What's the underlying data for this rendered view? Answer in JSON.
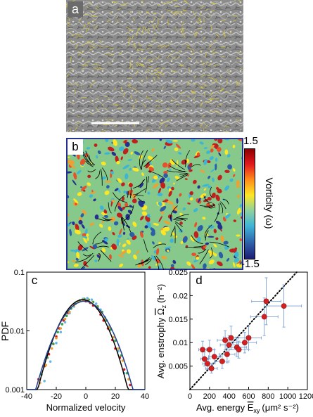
{
  "panels": {
    "a": {
      "letter": "a"
    },
    "b": {
      "letter": "b",
      "colorbar": {
        "max_label": "1.5",
        "min_label": "-1.5",
        "title": "Vorticity (ω)"
      }
    },
    "c": {
      "letter": "c"
    },
    "d": {
      "letter": "d"
    }
  },
  "colors": {
    "panel_a_bg": "#8f8f8f",
    "vector_yellow": "#d9c93a",
    "scale_bar": "#ffffff",
    "vorticity_high": "#c0201e",
    "vorticity_mid": "#86c98a",
    "vorticity_low": "#25308f",
    "streamline": "#000000",
    "pdf_fit": "#000000",
    "pdf_fit2": "#1f3f8f",
    "d_points": "#d42020",
    "d_errorbars": "#7aa0d4"
  },
  "chart_data": [
    {
      "type": "scatter",
      "panel": "c",
      "xlabel": "Normalized velocity",
      "ylabel": "PDF",
      "xlim": [
        -40,
        40
      ],
      "ylim": [
        0.001,
        0.1
      ],
      "yscale": "log",
      "xticks": [
        -40,
        -20,
        0,
        20,
        40
      ],
      "xtick_labels": [
        "-40",
        "-20",
        "0",
        "20",
        "40"
      ],
      "yticks": [
        0.001,
        0.01,
        0.1
      ],
      "ytick_labels": [
        "0.001",
        "0.01",
        "0.1"
      ],
      "series": [
        {
          "color": "#d42020",
          "x": [
            -32,
            -28,
            -25,
            -22,
            -20,
            -18,
            -15,
            -12,
            -10,
            -8,
            -5,
            -2,
            0,
            3,
            5,
            8,
            10,
            12,
            15,
            18,
            20,
            23,
            26,
            30
          ],
          "y": [
            0.0015,
            0.0025,
            0.004,
            0.006,
            0.008,
            0.011,
            0.015,
            0.02,
            0.024,
            0.028,
            0.031,
            0.033,
            0.032,
            0.03,
            0.027,
            0.024,
            0.019,
            0.015,
            0.011,
            0.007,
            0.005,
            0.0035,
            0.0022,
            0.0012
          ]
        },
        {
          "color": "#3aa04a",
          "x": [
            -30,
            -26,
            -22,
            -19,
            -16,
            -13,
            -10,
            -7,
            -4,
            -1,
            2,
            5,
            8,
            11,
            14,
            17,
            20,
            24,
            28
          ],
          "y": [
            0.0018,
            0.0035,
            0.006,
            0.0095,
            0.013,
            0.018,
            0.024,
            0.029,
            0.033,
            0.035,
            0.034,
            0.031,
            0.026,
            0.021,
            0.015,
            0.0105,
            0.0068,
            0.0038,
            0.0019
          ]
        },
        {
          "color": "#66b8e8",
          "x": [
            -28,
            -24,
            -20,
            -17,
            -14,
            -11,
            -8,
            -5,
            -2,
            1,
            4,
            7,
            10,
            13,
            16,
            19,
            22,
            26
          ],
          "y": [
            0.0014,
            0.003,
            0.0062,
            0.0095,
            0.014,
            0.02,
            0.026,
            0.031,
            0.035,
            0.036,
            0.034,
            0.029,
            0.023,
            0.017,
            0.012,
            0.0078,
            0.0045,
            0.0019
          ]
        },
        {
          "color": "#e8a030",
          "x": [
            -31,
            -27,
            -23,
            -20,
            -17,
            -14,
            -11,
            -8,
            -5,
            -2,
            1,
            4,
            7,
            10,
            13,
            16,
            19,
            22,
            25,
            29
          ],
          "y": [
            0.0013,
            0.0026,
            0.005,
            0.0075,
            0.011,
            0.016,
            0.021,
            0.027,
            0.031,
            0.034,
            0.033,
            0.03,
            0.026,
            0.021,
            0.016,
            0.0115,
            0.0078,
            0.005,
            0.0031,
            0.0015
          ]
        }
      ],
      "fits": [
        {
          "color": "#000000",
          "mean": -2,
          "sigma": 11.5,
          "amplitude": 0.034
        },
        {
          "color": "#1f3f8f",
          "mean": -1,
          "sigma": 12.5,
          "amplitude": 0.032
        }
      ]
    },
    {
      "type": "scatter",
      "panel": "d",
      "xlabel": "Avg. energy Ē_xy (μm² s⁻²)",
      "ylabel": "Avg. enstrophy Ω̄_z (h⁻²)",
      "xlabel_parts": {
        "prefix": "Avg. energy ",
        "symbol": "E",
        "subscript": "xy",
        "units": "(μm² s⁻²)"
      },
      "ylabel_parts": {
        "prefix": "Avg. enstrophy ",
        "symbol": "Ω",
        "subscript": "z",
        "units": "(h⁻²)"
      },
      "xlim": [
        0,
        1200
      ],
      "ylim": [
        0,
        0.025
      ],
      "xticks": [
        0,
        200,
        400,
        600,
        800,
        1000,
        1200
      ],
      "xtick_labels": [
        "0",
        "200",
        "400",
        "600",
        "800",
        "1000",
        "1200"
      ],
      "yticks": [
        0.005,
        0.01,
        0.015,
        0.02,
        0.025
      ],
      "ytick_labels": [
        "0.005",
        "0.01",
        "0.015",
        "0.02",
        "0.025"
      ],
      "points": [
        {
          "x": 130,
          "y": 0.0085,
          "xerr": 40,
          "yerr": 0.0018
        },
        {
          "x": 150,
          "y": 0.0065,
          "xerr": 40,
          "yerr": 0.0015
        },
        {
          "x": 180,
          "y": 0.0055,
          "xerr": 50,
          "yerr": 0.0012
        },
        {
          "x": 200,
          "y": 0.0085,
          "xerr": 50,
          "yerr": 0.002
        },
        {
          "x": 220,
          "y": 0.0045,
          "xerr": 60,
          "yerr": 0.001
        },
        {
          "x": 250,
          "y": 0.007,
          "xerr": 60,
          "yerr": 0.0015
        },
        {
          "x": 330,
          "y": 0.006,
          "xerr": 70,
          "yerr": 0.0015
        },
        {
          "x": 360,
          "y": 0.0105,
          "xerr": 80,
          "yerr": 0.002
        },
        {
          "x": 380,
          "y": 0.0075,
          "xerr": 80,
          "yerr": 0.0018
        },
        {
          "x": 400,
          "y": 0.0095,
          "xerr": 90,
          "yerr": 0.002
        },
        {
          "x": 420,
          "y": 0.011,
          "xerr": 80,
          "yerr": 0.0025
        },
        {
          "x": 480,
          "y": 0.009,
          "xerr": 100,
          "yerr": 0.002
        },
        {
          "x": 500,
          "y": 0.0085,
          "xerr": 100,
          "yerr": 0.0018
        },
        {
          "x": 560,
          "y": 0.01,
          "xerr": 120,
          "yerr": 0.0022
        },
        {
          "x": 600,
          "y": 0.011,
          "xerr": 130,
          "yerr": 0.0025
        },
        {
          "x": 760,
          "y": 0.0155,
          "xerr": 140,
          "yerr": 0.004
        },
        {
          "x": 780,
          "y": 0.0188,
          "xerr": 150,
          "yerr": 0.005
        },
        {
          "x": 960,
          "y": 0.0178,
          "xerr": 180,
          "yerr": 0.0045
        }
      ],
      "reference_line": {
        "style": "dotted",
        "x": [
          0,
          1200
        ],
        "y": [
          0,
          0.0275
        ]
      }
    }
  ]
}
